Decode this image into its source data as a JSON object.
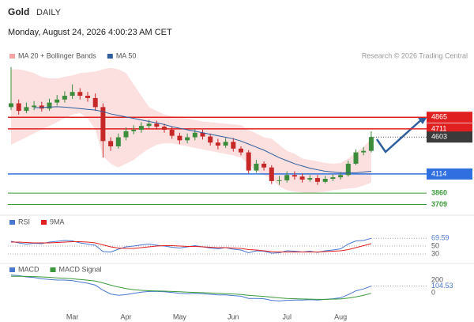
{
  "header": {
    "title": "Gold",
    "period": "DAILY",
    "timestamp": "Monday, August 24, 2026 4:00:23 AM CET",
    "credit": "Research © 2026 Trading Central"
  },
  "chart_data": [
    {
      "type": "candlestick",
      "categories": [
        null,
        null,
        null,
        null,
        null,
        null,
        null,
        null,
        "Mar",
        null,
        null,
        null,
        null,
        null,
        null,
        "Apr",
        null,
        null,
        null,
        null,
        null,
        null,
        "May",
        null,
        null,
        null,
        null,
        null,
        null,
        "Jun",
        null,
        null,
        null,
        null,
        null,
        null,
        "Jul",
        null,
        null,
        null,
        null,
        null,
        null,
        "Aug",
        null,
        null,
        null,
        null
      ],
      "open": [
        5000,
        5050,
        4950,
        5000,
        5020,
        4980,
        5060,
        5100,
        5150,
        5200,
        5150,
        5120,
        5000,
        4550,
        4480,
        4600,
        4680,
        4700,
        4750,
        4780,
        4740,
        4700,
        4620,
        4560,
        4600,
        4660,
        4610,
        4530,
        4490,
        4540,
        4450,
        4400,
        4160,
        4250,
        4200,
        4020,
        4030,
        4100,
        4080,
        4040,
        4060,
        4010,
        4050,
        4070,
        4100,
        4250,
        4400,
        4420
      ],
      "high": [
        5530,
        5100,
        5060,
        5080,
        5070,
        5110,
        5160,
        5210,
        5300,
        5250,
        5200,
        5180,
        5050,
        4600,
        4650,
        4730,
        4760,
        4800,
        4830,
        4820,
        4780,
        4740,
        4660,
        4650,
        4710,
        4700,
        4650,
        4580,
        4590,
        4590,
        4480,
        4430,
        4300,
        4280,
        4230,
        4090,
        4150,
        4150,
        4120,
        4100,
        4100,
        4090,
        4110,
        4140,
        4290,
        4440,
        4470,
        4680
      ],
      "low": [
        4960,
        4900,
        4920,
        4960,
        4940,
        4950,
        5020,
        5060,
        5110,
        5100,
        5070,
        4950,
        4330,
        4420,
        4450,
        4560,
        4640,
        4660,
        4720,
        4700,
        4660,
        4580,
        4510,
        4520,
        4560,
        4570,
        4490,
        4440,
        4460,
        4410,
        4360,
        4120,
        4130,
        4160,
        3980,
        3970,
        4000,
        4040,
        4000,
        4010,
        3970,
        3990,
        4020,
        4040,
        4080,
        4230,
        4360,
        4400
      ],
      "close": [
        5050,
        4950,
        5000,
        5020,
        4980,
        5060,
        5100,
        5150,
        5200,
        5150,
        5120,
        5000,
        4550,
        4480,
        4600,
        4680,
        4700,
        4750,
        4780,
        4740,
        4700,
        4620,
        4560,
        4600,
        4660,
        4610,
        4530,
        4490,
        4540,
        4450,
        4400,
        4160,
        4250,
        4200,
        4020,
        4030,
        4100,
        4080,
        4040,
        4060,
        4010,
        4050,
        4070,
        4100,
        4250,
        4400,
        4420,
        4603
      ],
      "up_color": "#3c8c3c",
      "down_color": "#c62828",
      "series": [
        {
          "name": "MA 20 + Bollinger Bands",
          "color": "#f5a3a3",
          "upper": [
            5500,
            5500,
            5480,
            5450,
            5400,
            5380,
            5380,
            5400,
            5420,
            5450,
            5460,
            5470,
            5500,
            5520,
            5500,
            5450,
            5300,
            5150,
            5000,
            4950,
            4900,
            4880,
            4860,
            4850,
            4830,
            4810,
            4800,
            4790,
            4780,
            4770,
            4760,
            4700,
            4650,
            4600,
            4580,
            4500,
            4420,
            4380,
            4320,
            4300,
            4280,
            4260,
            4250,
            4260,
            4320,
            4400,
            4470,
            4580
          ],
          "lower": [
            4500,
            4550,
            4600,
            4650,
            4700,
            4750,
            4800,
            4850,
            4900,
            4920,
            4850,
            4700,
            4350,
            4250,
            4200,
            4250,
            4300,
            4380,
            4450,
            4500,
            4520,
            4520,
            4500,
            4480,
            4460,
            4440,
            4420,
            4400,
            4380,
            4360,
            4330,
            4250,
            4150,
            4100,
            4050,
            3950,
            3900,
            3880,
            3870,
            3860,
            3870,
            3880,
            3900,
            3910,
            3920,
            3930,
            3960,
            4000
          ]
        },
        {
          "name": "MA 50",
          "color": "#2f5f9e",
          "values": [
            null,
            null,
            null,
            4990,
            4995,
            5000,
            5005,
            5000,
            4990,
            4980,
            4970,
            4960,
            4940,
            4910,
            4890,
            4870,
            4850,
            4830,
            4810,
            4790,
            4770,
            4740,
            4720,
            4700,
            4680,
            4660,
            4640,
            4620,
            4600,
            4580,
            4550,
            4510,
            4470,
            4430,
            4380,
            4330,
            4290,
            4250,
            4220,
            4190,
            4170,
            4150,
            4140,
            4130,
            4130,
            4130,
            4140,
            4150
          ]
        }
      ],
      "levels": [
        {
          "value": 4865,
          "color": "#e02020",
          "label_style": "box"
        },
        {
          "value": 4711,
          "color": "#e02020",
          "label_style": "box"
        },
        {
          "value": 4114,
          "color": "#2f6fe0",
          "label_style": "box"
        },
        {
          "value": 3860,
          "color": "#3a9a3a",
          "label_style": "text"
        },
        {
          "value": 3709,
          "color": "#3a9a3a",
          "label_style": "text"
        }
      ],
      "last_color": "#3a3a3a",
      "ylim": [
        3610,
        5580
      ]
    },
    {
      "type": "line",
      "series": [
        {
          "name": "RSI",
          "color": "#4a78d0",
          "values": [
            62,
            58,
            55,
            57,
            56,
            60,
            62,
            64,
            63,
            58,
            55,
            52,
            36,
            35,
            42,
            48,
            50,
            53,
            55,
            52,
            50,
            47,
            45,
            48,
            51,
            48,
            45,
            43,
            46,
            42,
            40,
            33,
            38,
            37,
            32,
            33,
            38,
            37,
            35,
            37,
            34,
            38,
            40,
            43,
            55,
            63,
            64,
            69.59
          ]
        },
        {
          "name": "9MA",
          "color": "#e02020",
          "values": [
            60,
            60,
            59,
            58,
            58,
            58,
            59,
            60,
            61,
            61,
            60,
            58,
            53,
            48,
            45,
            44,
            44,
            46,
            48,
            50,
            51,
            51,
            50,
            49,
            49,
            48,
            47,
            46,
            46,
            45,
            44,
            41,
            40,
            38,
            36,
            35,
            35,
            35,
            35,
            35,
            35,
            36,
            37,
            38,
            41,
            46,
            51,
            56
          ]
        }
      ],
      "ylim": [
        20,
        80
      ],
      "yticks": [
        50,
        30
      ],
      "grid": true
    },
    {
      "type": "line",
      "series": [
        {
          "name": "MACD",
          "color": "#4a78d0",
          "values": [
            280,
            270,
            250,
            240,
            220,
            210,
            200,
            200,
            190,
            170,
            150,
            120,
            40,
            -20,
            -40,
            -30,
            -10,
            10,
            20,
            20,
            15,
            5,
            -10,
            -15,
            -10,
            -15,
            -25,
            -35,
            -35,
            -45,
            -55,
            -90,
            -90,
            -95,
            -120,
            -130,
            -120,
            -115,
            -115,
            -110,
            -115,
            -105,
            -95,
            -80,
            -30,
            30,
            60,
            104.53
          ]
        },
        {
          "name": "MACD Signal",
          "color": "#3a9a3a",
          "values": [
            260,
            260,
            258,
            255,
            250,
            243,
            235,
            228,
            220,
            210,
            198,
            184,
            155,
            120,
            90,
            65,
            48,
            38,
            32,
            28,
            25,
            21,
            15,
            9,
            5,
            1,
            -4,
            -10,
            -15,
            -21,
            -28,
            -40,
            -50,
            -58,
            -70,
            -82,
            -90,
            -95,
            -99,
            -101,
            -104,
            -104,
            -102,
            -98,
            -85,
            -65,
            -40,
            -10
          ]
        }
      ],
      "ylim": [
        -300,
        300
      ],
      "yticks": [
        200,
        0
      ]
    }
  ]
}
